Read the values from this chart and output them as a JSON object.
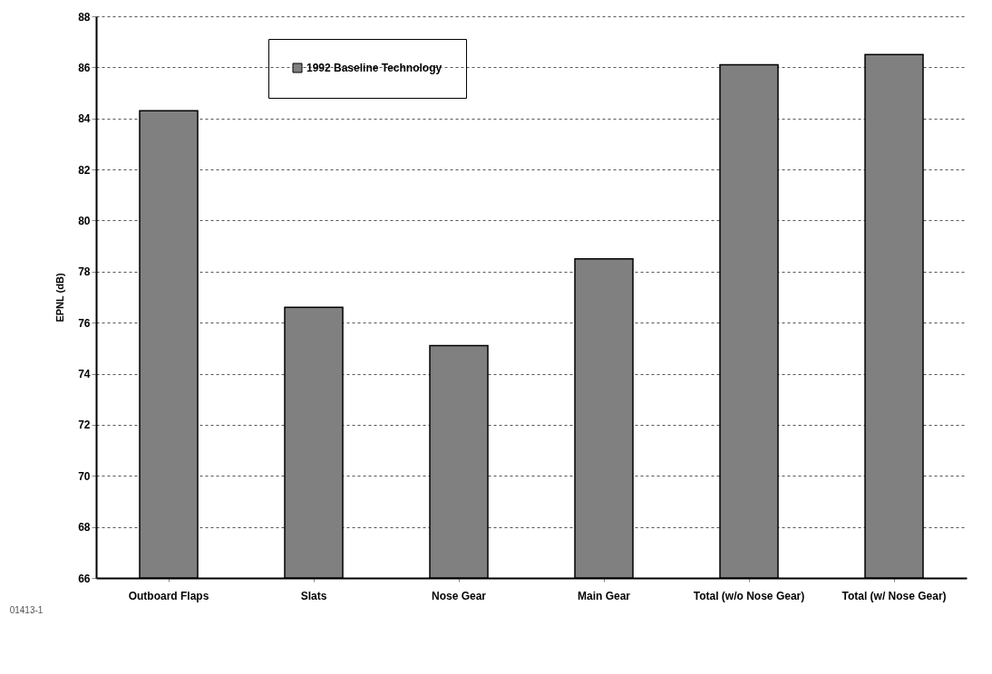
{
  "chart_data": {
    "type": "bar",
    "ylabel": "EPNL (dB)",
    "categories": [
      "Outboard Flaps",
      "Slats",
      "Nose Gear",
      "Main Gear",
      "Total (w/o Nose Gear)",
      "Total (w/ Nose Gear)"
    ],
    "series": [
      {
        "name": "1992 Baseline Technology",
        "color": "#808080",
        "values": [
          84.3,
          76.6,
          75.1,
          78.5,
          86.1,
          86.5
        ]
      }
    ],
    "ylim": [
      66,
      88
    ],
    "yticks": [
      66,
      68,
      70,
      72,
      74,
      76,
      78,
      80,
      82,
      84,
      86,
      88
    ],
    "grid": "y",
    "legend": "top left",
    "annotations": [
      "01413-1"
    ]
  }
}
